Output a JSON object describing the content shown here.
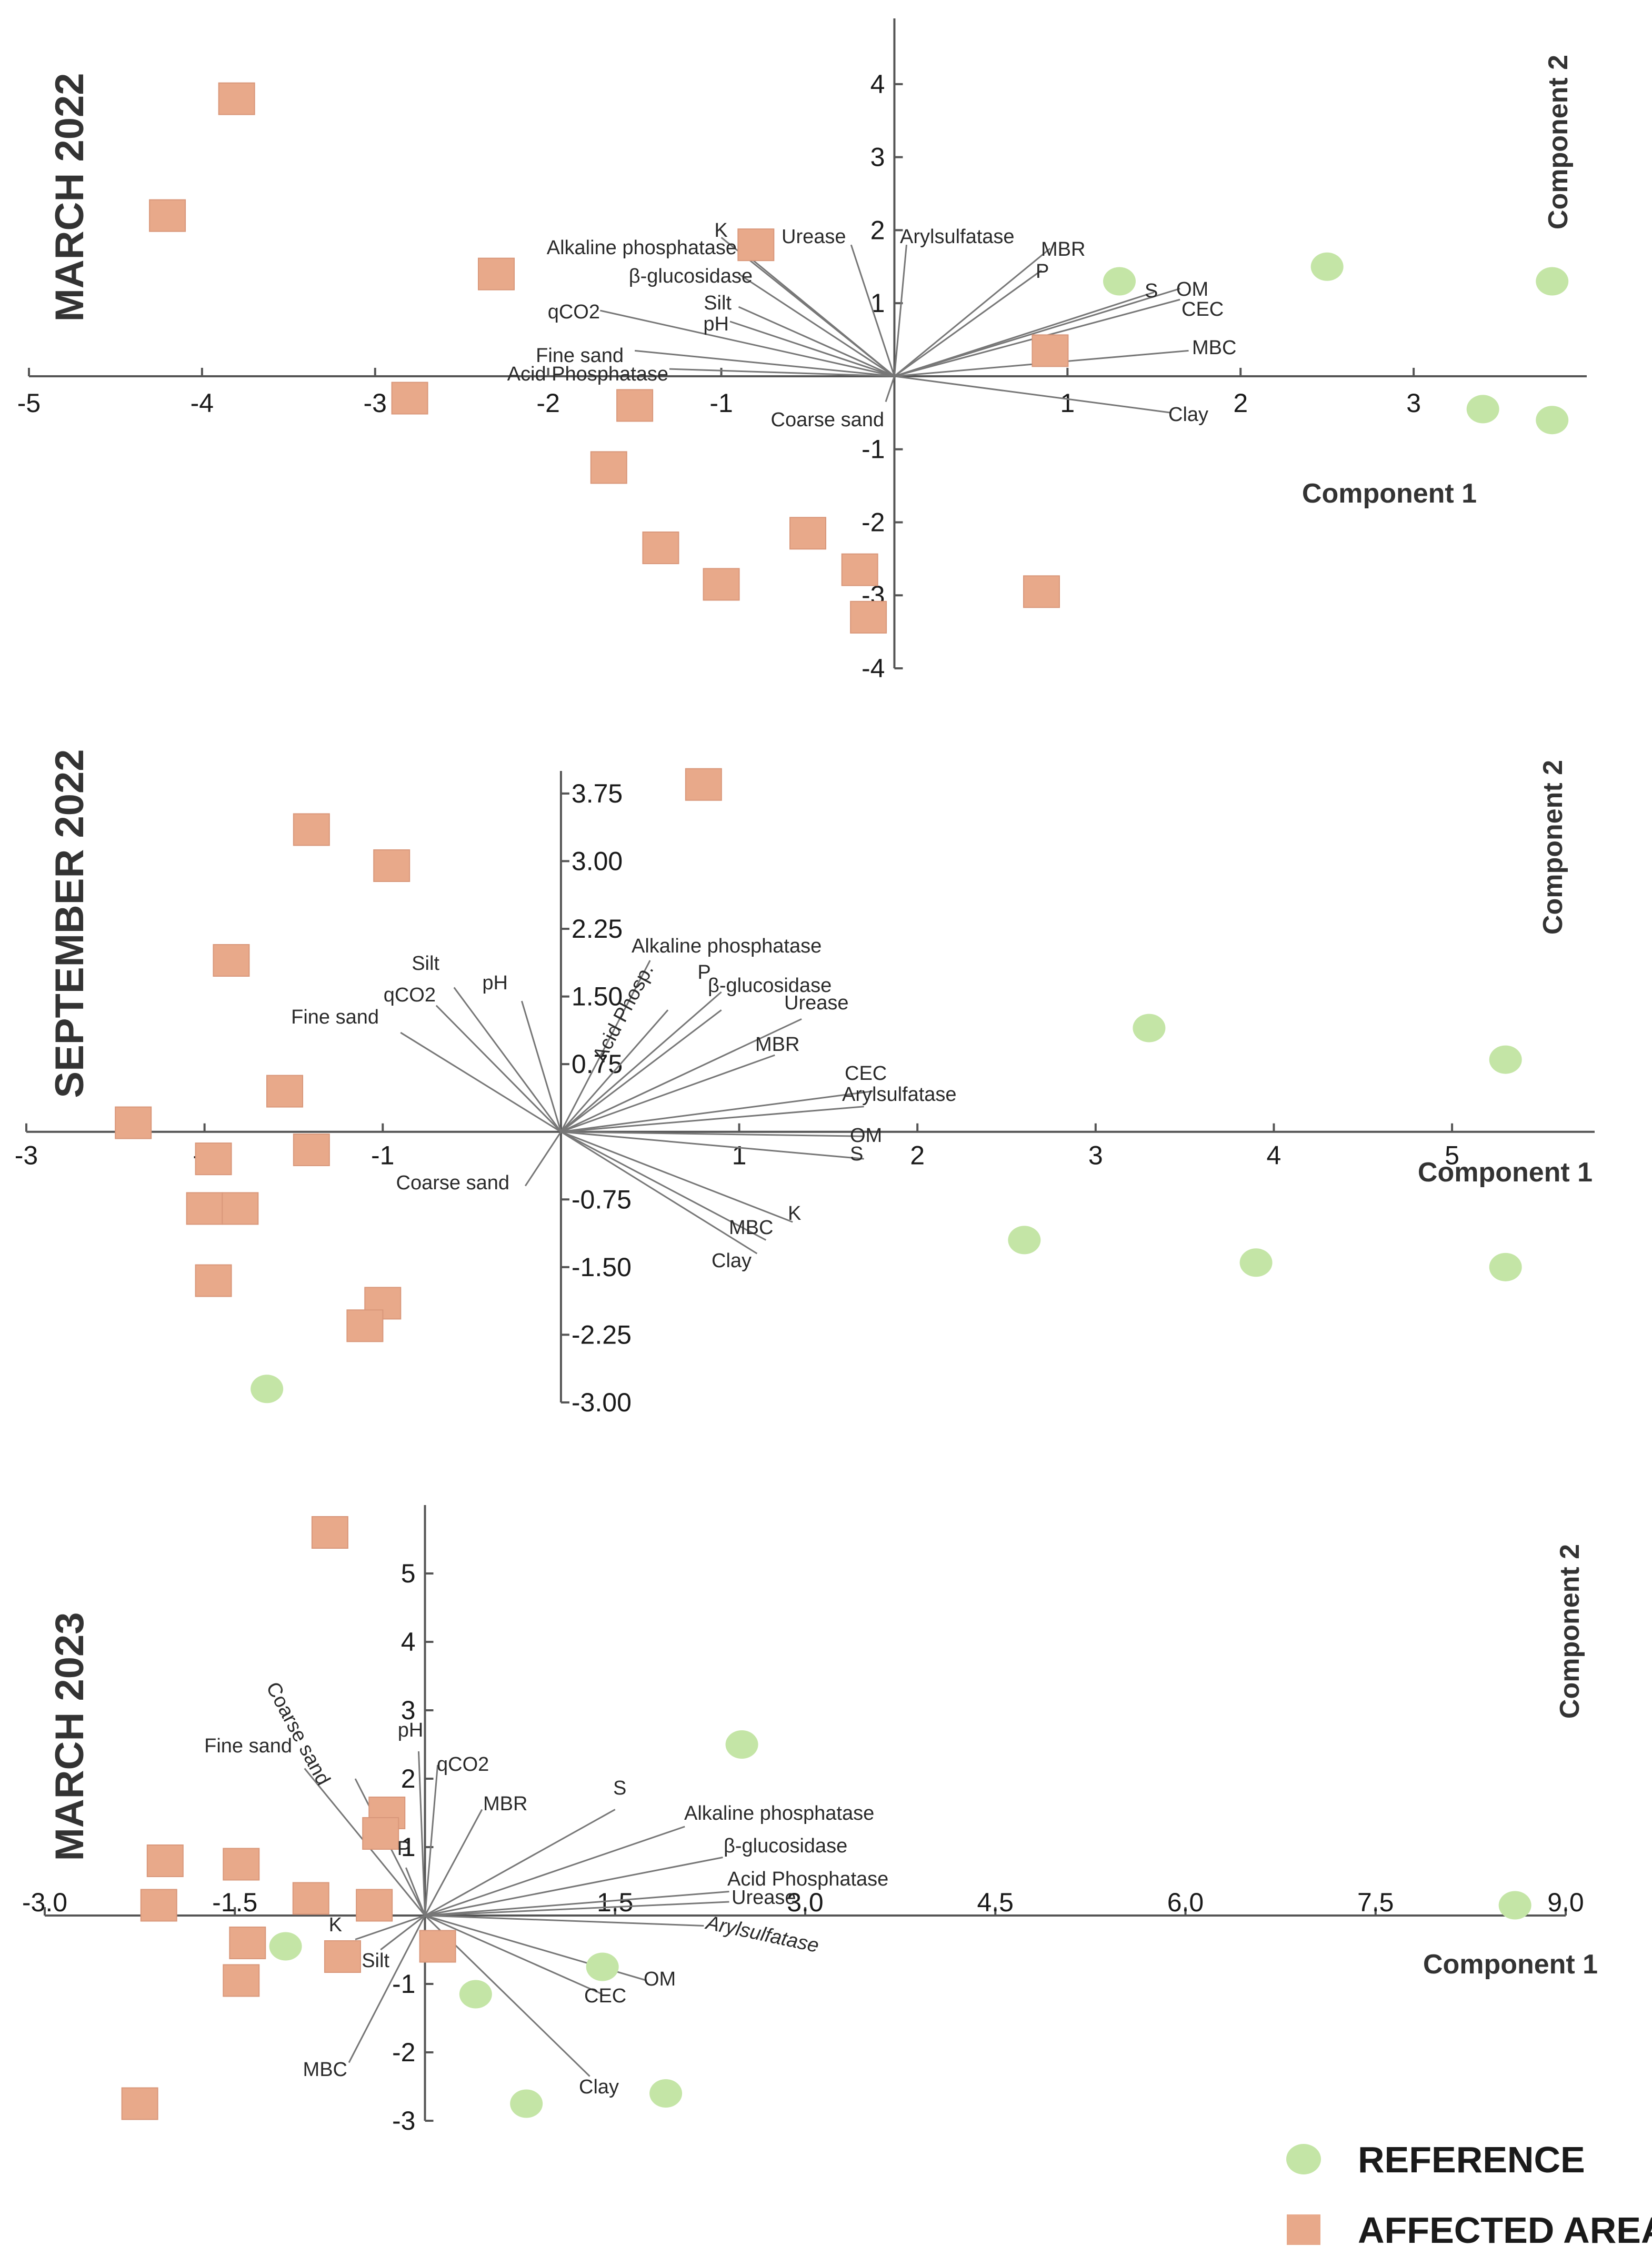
{
  "legend": {
    "reference_label": "REFERENCE",
    "affected_label": "AFFECTED AREA",
    "reference_color": "#c4e5a6",
    "affected_color": "#e8a98a"
  },
  "chart_data": [
    {
      "type": "scatter",
      "title": "MARCH 2022",
      "xlabel": "Component 1",
      "ylabel": "Component 2",
      "xlim": [
        -5,
        4
      ],
      "ylim": [
        -4,
        4.9
      ],
      "xticks": [
        -5,
        -4,
        -3,
        -2,
        -1,
        1,
        2,
        3
      ],
      "yticks": [
        -4,
        -3,
        -2,
        -1,
        1,
        2,
        3,
        4
      ],
      "x_tick_labels": [
        "-5",
        "-4",
        "-3",
        "-2",
        "-1",
        "1",
        "2",
        "3"
      ],
      "y_tick_labels": [
        "-4",
        "-3",
        "-2",
        "-1",
        "1",
        "2",
        "3",
        "4"
      ],
      "series": [
        {
          "name": "AFFECTED AREA",
          "points": [
            [
              -3.8,
              3.8
            ],
            [
              -4.2,
              2.2
            ],
            [
              -2.3,
              1.4
            ],
            [
              -0.8,
              1.8
            ],
            [
              -2.8,
              -0.3
            ],
            [
              -1.5,
              -0.4
            ],
            [
              -1.65,
              -1.25
            ],
            [
              -1.35,
              -2.35
            ],
            [
              -1.0,
              -2.85
            ],
            [
              -0.5,
              -2.15
            ],
            [
              -0.2,
              -2.65
            ],
            [
              -0.15,
              -3.3
            ],
            [
              0.85,
              -2.95
            ],
            [
              0.9,
              0.35
            ]
          ]
        },
        {
          "name": "REFERENCE",
          "points": [
            [
              1.3,
              1.3
            ],
            [
              2.5,
              1.5
            ],
            [
              3.8,
              1.3
            ],
            [
              3.4,
              -0.45
            ],
            [
              3.8,
              -0.6
            ]
          ]
        }
      ],
      "loadings": [
        {
          "label": "K",
          "x": -1.0,
          "y": 1.9
        },
        {
          "label": "Alkaline phosphatase",
          "x": -0.9,
          "y": 1.75
        },
        {
          "label": "Urease",
          "x": -0.25,
          "y": 1.8
        },
        {
          "label": "Arylsulfatase",
          "x": 0.07,
          "y": 1.8
        },
        {
          "label": "MBR",
          "x": 0.9,
          "y": 1.75
        },
        {
          "label": "P",
          "x": 0.85,
          "y": 1.45
        },
        {
          "label": "β-glucosidase",
          "x": -0.9,
          "y": 1.4
        },
        {
          "label": "S",
          "x": 1.5,
          "y": 1.15
        },
        {
          "label": "OM",
          "x": 1.65,
          "y": 1.2
        },
        {
          "label": "CEC",
          "x": 1.65,
          "y": 1.05
        },
        {
          "label": "qCO2",
          "x": -1.7,
          "y": 0.9
        },
        {
          "label": "Silt",
          "x": -0.9,
          "y": 0.95
        },
        {
          "label": "pH",
          "x": -0.95,
          "y": 0.75
        },
        {
          "label": "MBC",
          "x": 1.7,
          "y": 0.35
        },
        {
          "label": "Fine sand",
          "x": -1.5,
          "y": 0.35
        },
        {
          "label": "Acid Phosphatase",
          "x": -1.3,
          "y": 0.1
        },
        {
          "label": "Coarse sand",
          "x": -0.05,
          "y": -0.35
        },
        {
          "label": "Clay",
          "x": 1.6,
          "y": -0.5
        }
      ]
    },
    {
      "type": "scatter",
      "title": "SEPTEMBER 2022",
      "xlabel": "Component 1",
      "ylabel": "Component 2",
      "xlim": [
        -3,
        5.8
      ],
      "ylim": [
        -3.0,
        4.0
      ],
      "xticks": [
        -3,
        -2,
        -1,
        1,
        2,
        3,
        4,
        5
      ],
      "yticks": [
        -3.0,
        -2.25,
        -1.5,
        -0.75,
        0.75,
        1.5,
        2.25,
        3.0,
        3.75
      ],
      "x_tick_labels": [
        "-3",
        "-2",
        "-1",
        "1",
        "2",
        "3",
        "4",
        "5"
      ],
      "y_tick_labels": [
        "-3.00",
        "-2.25",
        "-1.50",
        "-0.75",
        "0.75",
        "1.50",
        "2.25",
        "3.00",
        "3.75"
      ],
      "series": [
        {
          "name": "AFFECTED AREA",
          "points": [
            [
              -1.4,
              3.35
            ],
            [
              -0.95,
              2.95
            ],
            [
              0.8,
              3.85
            ],
            [
              -1.85,
              1.9
            ],
            [
              -1.55,
              0.45
            ],
            [
              -2.4,
              0.1
            ],
            [
              -1.4,
              -0.2
            ],
            [
              -1.95,
              -0.3
            ],
            [
              -2.0,
              -0.85
            ],
            [
              -1.8,
              -0.85
            ],
            [
              -1.95,
              -1.65
            ],
            [
              -1.0,
              -1.9
            ],
            [
              -1.1,
              -2.15
            ]
          ]
        },
        {
          "name": "REFERENCE",
          "points": [
            [
              3.3,
              1.15
            ],
            [
              5.3,
              0.8
            ],
            [
              2.6,
              -1.2
            ],
            [
              3.9,
              -1.45
            ],
            [
              5.3,
              -1.5
            ],
            [
              -1.65,
              -2.85
            ]
          ]
        }
      ],
      "loadings": [
        {
          "label": "Alkaline phosphatase",
          "x": 0.5,
          "y": 1.9
        },
        {
          "label": "Acid Phosp.",
          "x": 0.6,
          "y": 1.35
        },
        {
          "label": "P",
          "x": 0.9,
          "y": 1.55
        },
        {
          "label": "β-glucosidase",
          "x": 0.9,
          "y": 1.35
        },
        {
          "label": "Urease",
          "x": 1.35,
          "y": 1.25
        },
        {
          "label": "MBR",
          "x": 1.2,
          "y": 0.85
        },
        {
          "label": "CEC",
          "x": 1.75,
          "y": 0.45
        },
        {
          "label": "Arylsulfatase",
          "x": 1.7,
          "y": 0.28
        },
        {
          "label": "OM",
          "x": 1.7,
          "y": -0.05
        },
        {
          "label": "S",
          "x": 1.7,
          "y": -0.3
        },
        {
          "label": "K",
          "x": 1.3,
          "y": -1.0
        },
        {
          "label": "MBC",
          "x": 1.15,
          "y": -1.2
        },
        {
          "label": "Clay",
          "x": 1.1,
          "y": -1.35
        },
        {
          "label": "Silt",
          "x": -0.6,
          "y": 1.6
        },
        {
          "label": "qCO2",
          "x": -0.7,
          "y": 1.4
        },
        {
          "label": "pH",
          "x": -0.22,
          "y": 1.45
        },
        {
          "label": "Fine sand",
          "x": -0.9,
          "y": 1.1
        },
        {
          "label": "Coarse sand",
          "x": -0.2,
          "y": -0.6
        }
      ]
    },
    {
      "type": "scatter",
      "title": "MARCH 2023",
      "xlabel": "Component 1",
      "ylabel": "Component 2",
      "xlim": [
        -3.0,
        9.0
      ],
      "ylim": [
        -3,
        6
      ],
      "xticks": [
        -3.0,
        -1.5,
        1.5,
        3.0,
        4.5,
        6.0,
        7.5,
        9.0
      ],
      "yticks": [
        -3,
        -2,
        -1,
        1,
        2,
        3,
        4,
        5
      ],
      "x_tick_labels": [
        "-3.0",
        "-1.5",
        "1.5",
        "3.0",
        "4.5",
        "6.0",
        "7.5",
        "9.0"
      ],
      "y_tick_labels": [
        "-3",
        "-2",
        "-1",
        "1",
        "2",
        "3",
        "4",
        "5"
      ],
      "series": [
        {
          "name": "AFFECTED AREA",
          "points": [
            [
              -0.75,
              5.6
            ],
            [
              -0.3,
              1.5
            ],
            [
              -0.35,
              1.2
            ],
            [
              -2.05,
              0.8
            ],
            [
              -1.45,
              0.75
            ],
            [
              -2.1,
              0.15
            ],
            [
              -0.9,
              0.25
            ],
            [
              -0.4,
              0.15
            ],
            [
              -1.4,
              -0.4
            ],
            [
              -0.65,
              -0.6
            ],
            [
              0.1,
              -0.45
            ],
            [
              -1.45,
              -0.95
            ],
            [
              -2.25,
              -2.75
            ]
          ]
        },
        {
          "name": "REFERENCE",
          "points": [
            [
              2.5,
              2.5
            ],
            [
              8.6,
              0.15
            ],
            [
              -1.1,
              -0.45
            ],
            [
              1.4,
              -0.75
            ],
            [
              0.4,
              -1.15
            ],
            [
              0.8,
              -2.75
            ],
            [
              1.9,
              -2.6
            ]
          ]
        }
      ],
      "loadings": [
        {
          "label": "Coarse sand",
          "x": -0.55,
          "y": 2.0
        },
        {
          "label": "Fine sand",
          "x": -0.95,
          "y": 2.15
        },
        {
          "label": "pH",
          "x": -0.05,
          "y": 2.4
        },
        {
          "label": "qCO2",
          "x": 0.1,
          "y": 2.2
        },
        {
          "label": "MBR",
          "x": 0.45,
          "y": 1.55
        },
        {
          "label": "P",
          "x": -0.15,
          "y": 0.7
        },
        {
          "label": "S",
          "x": 1.5,
          "y": 1.55
        },
        {
          "label": "Alkaline phosphatase",
          "x": 2.05,
          "y": 1.3
        },
        {
          "label": "β-glucosidase",
          "x": 2.35,
          "y": 0.85
        },
        {
          "label": "Acid Phosphatase",
          "x": 2.4,
          "y": 0.35
        },
        {
          "label": "Urease",
          "x": 2.4,
          "y": 0.2
        },
        {
          "label": "Arylsulfatase",
          "x": 2.2,
          "y": -0.15
        },
        {
          "label": "OM",
          "x": 1.75,
          "y": -0.95
        },
        {
          "label": "CEC",
          "x": 1.4,
          "y": -1.15
        },
        {
          "label": "Clay",
          "x": 1.3,
          "y": -2.35
        },
        {
          "label": "K",
          "x": -0.55,
          "y": -0.35
        },
        {
          "label": "Silt",
          "x": -0.35,
          "y": -0.5
        },
        {
          "label": "MBC",
          "x": -0.6,
          "y": -2.15
        }
      ]
    }
  ]
}
